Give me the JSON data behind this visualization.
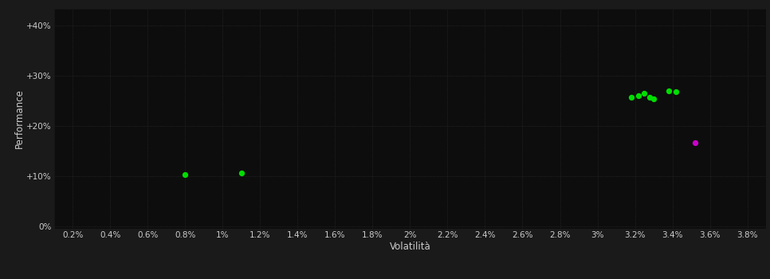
{
  "background_color": "#1a1a1a",
  "plot_bg_color": "#0d0d0d",
  "grid_color": "#2a2a2a",
  "xlabel": "Volatilità",
  "ylabel": "Performance",
  "xlim": [
    0.001,
    0.039
  ],
  "ylim": [
    -0.005,
    0.435
  ],
  "xticks": [
    0.002,
    0.004,
    0.006,
    0.008,
    0.01,
    0.012,
    0.014,
    0.016,
    0.018,
    0.02,
    0.022,
    0.024,
    0.026,
    0.028,
    0.03,
    0.032,
    0.034,
    0.036,
    0.038
  ],
  "yticks": [
    0.0,
    0.1,
    0.2,
    0.3,
    0.4
  ],
  "ytick_labels": [
    "0%",
    "+10%",
    "+20%",
    "+30%",
    "+40%"
  ],
  "xtick_labels": [
    "0.2%",
    "0.4%",
    "0.6%",
    "0.8%",
    "1%",
    "1.2%",
    "1.4%",
    "1.6%",
    "1.8%",
    "2%",
    "2.2%",
    "2.4%",
    "2.6%",
    "2.8%",
    "3%",
    "3.2%",
    "3.4%",
    "3.6%",
    "3.8%"
  ],
  "green_points": [
    [
      0.008,
      0.103
    ],
    [
      0.011,
      0.107
    ],
    [
      0.0318,
      0.257
    ],
    [
      0.0322,
      0.261
    ],
    [
      0.0325,
      0.265
    ],
    [
      0.0328,
      0.258
    ],
    [
      0.033,
      0.254
    ],
    [
      0.0338,
      0.271
    ],
    [
      0.0342,
      0.268
    ]
  ],
  "magenta_points": [
    [
      0.0352,
      0.167
    ]
  ],
  "point_size": 18,
  "green_color": "#00dd00",
  "magenta_color": "#cc00cc",
  "tick_color": "#cccccc",
  "label_color": "#cccccc",
  "tick_fontsize": 7.5,
  "label_fontsize": 8.5,
  "figsize": [
    9.66,
    3.5
  ],
  "dpi": 100
}
